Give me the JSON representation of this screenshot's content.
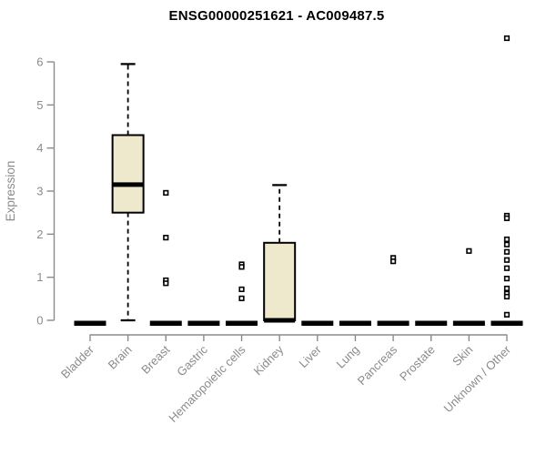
{
  "chart_data": {
    "type": "boxplot",
    "title": "ENSG00000251621 - AC009487.5",
    "xlabel": "",
    "ylabel": "Expression",
    "ylim": [
      0,
      6.6
    ],
    "yticks": [
      0,
      1,
      2,
      3,
      4,
      5,
      6
    ],
    "grid": "off",
    "legend": "none",
    "categories": [
      "Bladder",
      "Brain",
      "Breast",
      "Gastric",
      "Hematopoietic cells",
      "Kidney",
      "Liver",
      "Lung",
      "Pancreas",
      "Prostate",
      "Skin",
      "Unknown / Other"
    ],
    "series": [
      {
        "label": "Bladder",
        "whisker_low": 0,
        "q1": 0,
        "median": 0,
        "q3": 0,
        "whisker_high": 0,
        "outliers": []
      },
      {
        "label": "Brain",
        "whisker_low": 0,
        "q1": 2.5,
        "median": 3.15,
        "q3": 4.3,
        "whisker_high": 5.95,
        "outliers": []
      },
      {
        "label": "Breast",
        "whisker_low": 0,
        "q1": 0,
        "median": 0,
        "q3": 0,
        "whisker_high": 0,
        "outliers": [
          2.96,
          1.92,
          0.93,
          0.86
        ]
      },
      {
        "label": "Gastric",
        "whisker_low": 0,
        "q1": 0,
        "median": 0,
        "q3": 0,
        "whisker_high": 0,
        "outliers": []
      },
      {
        "label": "Hematopoietic cells",
        "whisker_low": 0,
        "q1": 0,
        "median": 0,
        "q3": 0,
        "whisker_high": 0,
        "outliers": [
          1.3,
          1.24,
          0.72,
          0.51
        ]
      },
      {
        "label": "Kidney",
        "whisker_low": 0,
        "q1": 0,
        "median": 0,
        "q3": 1.8,
        "whisker_high": 3.14,
        "outliers": []
      },
      {
        "label": "Liver",
        "whisker_low": 0,
        "q1": 0,
        "median": 0,
        "q3": 0,
        "whisker_high": 0,
        "outliers": []
      },
      {
        "label": "Lung",
        "whisker_low": 0,
        "q1": 0,
        "median": 0,
        "q3": 0,
        "whisker_high": 0,
        "outliers": []
      },
      {
        "label": "Pancreas",
        "whisker_low": 0,
        "q1": 0,
        "median": 0,
        "q3": 0,
        "whisker_high": 0,
        "outliers": [
          1.45,
          1.37
        ]
      },
      {
        "label": "Prostate",
        "whisker_low": 0,
        "q1": 0,
        "median": 0,
        "q3": 0,
        "whisker_high": 0,
        "outliers": []
      },
      {
        "label": "Skin",
        "whisker_low": 0,
        "q1": 0,
        "median": 0,
        "q3": 0,
        "whisker_high": 0,
        "outliers": [
          1.61
        ]
      },
      {
        "label": "Unknown / Other",
        "whisker_low": 0,
        "q1": 0,
        "median": 0,
        "q3": 0,
        "whisker_high": 0,
        "outliers": [
          6.55,
          2.43,
          2.37,
          1.88,
          1.76,
          1.59,
          1.4,
          1.21,
          0.97,
          0.74,
          0.62,
          0.55,
          0.13
        ]
      }
    ],
    "colors": {
      "box_fill": "#EEE8CD",
      "box_stroke": "#000000",
      "median": "#000000",
      "outlier_fill": "#FFFFFF",
      "outlier_stroke": "#000000",
      "axis": "#8B8B8B",
      "tick_label": "#8B8B8B",
      "axis_title": "#8B8B8B",
      "title": "#000000",
      "background": "#FFFFFF"
    }
  }
}
